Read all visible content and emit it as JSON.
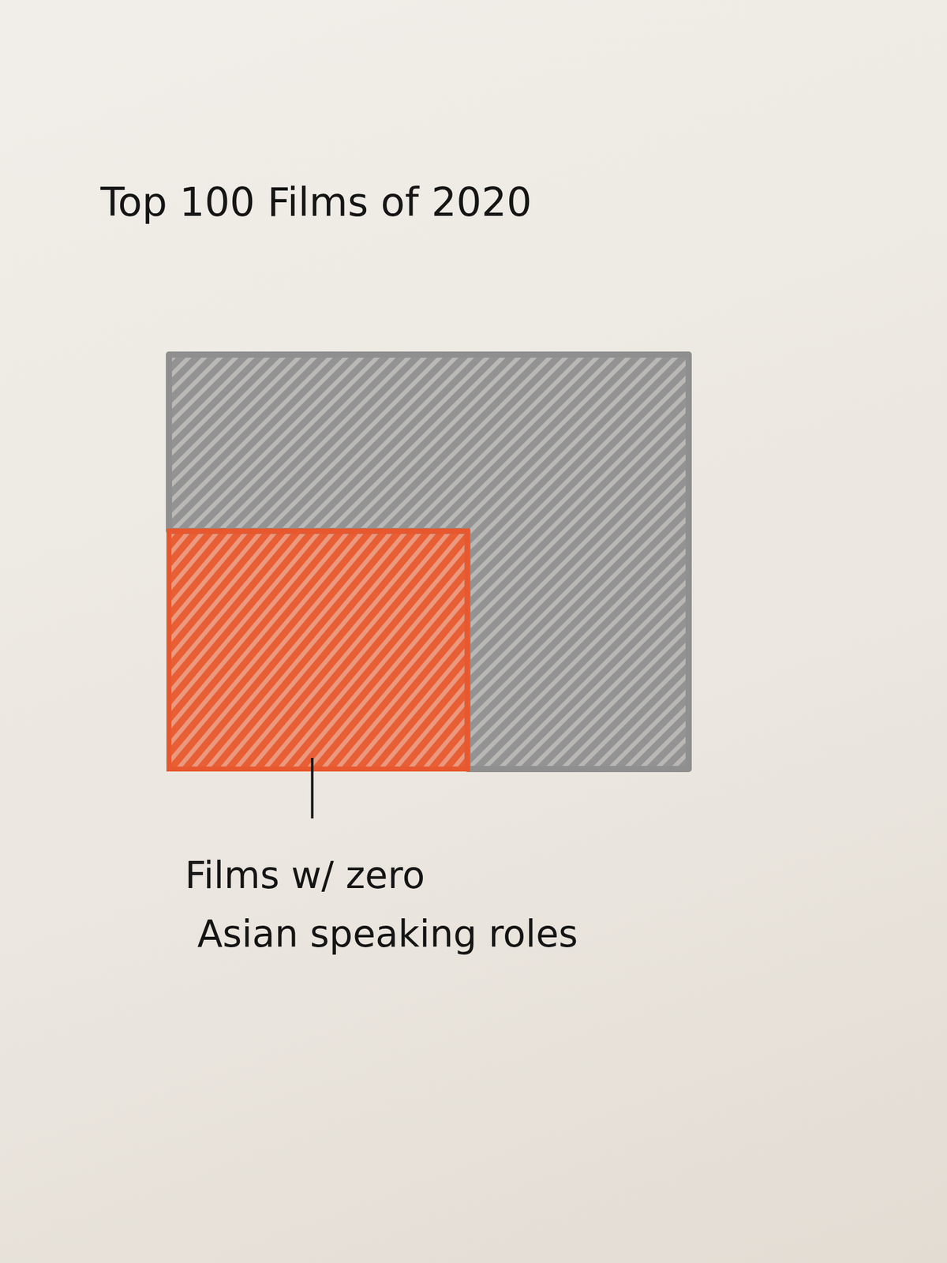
{
  "chart_data": {
    "type": "proportion",
    "title": "Top 100 Films of 2020",
    "categories": [
      "Films w/ zero Asian speaking roles",
      null
    ],
    "values": [
      33,
      67
    ],
    "colors": [
      "#e8582e",
      "#8f8f8f"
    ]
  }
}
